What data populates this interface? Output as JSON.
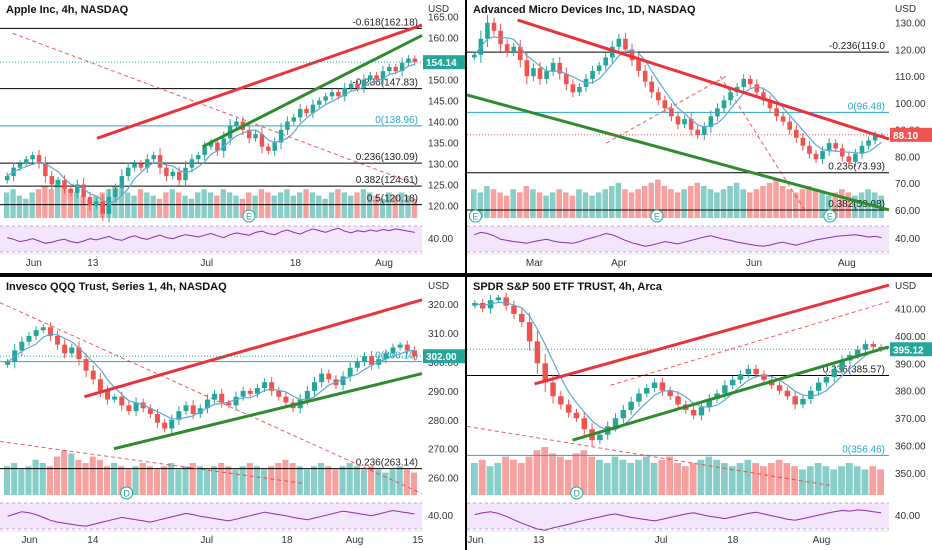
{
  "colors": {
    "candle_up": "#26a69a",
    "candle_down": "#ef5350",
    "resistance": "#e8323c",
    "support": "#2e8b2e",
    "fib_line": "#000000",
    "fib_zero": "#26a6c9",
    "dashed_trend": "#e8323c",
    "ma_line": "#5fa8d3",
    "rsi_band": "#f3e5fb",
    "rsi_line": "#8b2fa8",
    "price_tag": "#26a69a",
    "price_tag_red": "#ef5350"
  },
  "chart_data": [
    {
      "type": "candlestick",
      "title": "Apple Inc, 4h, NASDAQ",
      "currency": "USD",
      "ylim": [
        117,
        168
      ],
      "y_ticks": [
        "165.00",
        "160.00",
        "155.00",
        "150.00",
        "145.00",
        "140.00",
        "135.00",
        "130.00",
        "125.00",
        "120.00"
      ],
      "x_ticks": [
        "Jun",
        "13",
        "Jul",
        "18",
        "Aug"
      ],
      "x_tick_pos": [
        0.08,
        0.22,
        0.49,
        0.7,
        0.91
      ],
      "price_label": "154.14",
      "price_label_color": "#26a69a",
      "last_price": 154.14,
      "rsi_tick": "40.00",
      "fib_levels": [
        {
          "label": "-0.618(162.18)",
          "value": 162.18,
          "zero": false
        },
        {
          "label": "-0.236(147.83)",
          "value": 147.83,
          "zero": false
        },
        {
          "label": "0(138.96)",
          "value": 138.96,
          "zero": true
        },
        {
          "label": "0.236(130.09)",
          "value": 130.09,
          "zero": false
        },
        {
          "label": "0.382(124.61)",
          "value": 124.61,
          "zero": false
        },
        {
          "label": "0.5(120.18)",
          "value": 120.18,
          "zero": false
        }
      ],
      "resistance": {
        "x": [
          0.23,
          1.0
        ],
        "y": [
          136.0,
          163.0
        ]
      },
      "support": {
        "x": [
          0.48,
          1.0
        ],
        "y": [
          134.0,
          160.5
        ]
      },
      "dashed": [
        {
          "x": [
            0.03,
            1.0
          ],
          "y": [
            161.0,
            124.5
          ]
        }
      ],
      "markers": [
        {
          "label": "E",
          "x": 0.59
        }
      ],
      "closes": [
        127,
        129,
        130,
        131,
        132,
        130,
        127,
        125,
        126,
        124,
        123,
        125,
        122,
        120,
        121,
        118,
        122,
        124,
        127,
        129,
        130,
        129,
        131,
        132,
        129,
        127,
        128,
        126,
        129,
        131,
        132,
        134,
        135,
        133,
        136,
        139,
        140,
        138,
        136,
        137,
        134,
        133,
        135,
        138,
        140,
        141,
        143,
        142,
        144,
        145,
        146,
        147,
        146,
        148,
        149,
        148,
        150,
        151,
        150,
        152,
        153,
        152,
        154,
        155,
        154.14
      ],
      "volumes": [
        8,
        9,
        7,
        6,
        8,
        9,
        10,
        9,
        12,
        10,
        9,
        8,
        7,
        6,
        7,
        8,
        9,
        10,
        9,
        8,
        7,
        9,
        8,
        7,
        6,
        8,
        9,
        8,
        7,
        6,
        8,
        9,
        8,
        7,
        9,
        8,
        7,
        6,
        8,
        7,
        9,
        8,
        7,
        8,
        9,
        7,
        8,
        9,
        8,
        7,
        6,
        8,
        9,
        8,
        7,
        8,
        9,
        8,
        7,
        6,
        8,
        7,
        8,
        7,
        6
      ],
      "rsi": [
        55,
        52,
        48,
        50,
        53,
        49,
        45,
        47,
        50,
        52,
        48,
        46,
        49,
        53,
        51,
        54,
        57,
        52,
        50,
        55,
        58,
        54,
        52,
        56,
        59,
        55,
        53,
        57,
        60,
        58,
        56,
        59,
        62,
        58,
        55,
        60,
        63,
        61,
        59,
        64,
        66,
        62,
        60,
        65,
        68,
        64,
        61,
        66,
        70,
        67,
        64,
        68,
        71,
        66,
        63,
        67,
        65,
        68,
        66,
        69,
        67,
        70,
        68,
        66,
        64
      ]
    },
    {
      "type": "candlestick",
      "title": "Advanced Micro Devices Inc, 1D, NASDAQ",
      "currency": "USD",
      "ylim": [
        57,
        137
      ],
      "y_ticks": [
        "130.00",
        "120.00",
        "110.00",
        "100.00",
        "90.00",
        "80.00",
        "70.00",
        "60.00"
      ],
      "x_ticks": [
        "Mar",
        "Apr",
        "Jun",
        "Aug"
      ],
      "x_tick_pos": [
        0.16,
        0.36,
        0.68,
        0.9
      ],
      "price_label": "88.10",
      "price_label_color": "#ef5350",
      "last_price": 88.1,
      "rsi_tick": "40.00",
      "fib_levels": [
        {
          "label": "-0.236(119.0",
          "value": 119.0,
          "zero": false
        },
        {
          "label": "0(96.48)",
          "value": 96.48,
          "zero": true
        },
        {
          "label": "0.236(73.93)",
          "value": 73.93,
          "zero": false
        },
        {
          "label": "0.382(59.98)",
          "value": 59.98,
          "zero": false
        }
      ],
      "resistance": {
        "x": [
          0.12,
          1.0
        ],
        "y": [
          131.0,
          86.5
        ]
      },
      "support": {
        "x": [
          0.0,
          1.0
        ],
        "y": [
          103.0,
          60.0
        ]
      },
      "dashed": [
        {
          "x": [
            0.33,
            0.62
          ],
          "y": [
            85.0,
            110.5
          ]
        },
        {
          "x": [
            0.6,
            0.8
          ],
          "y": [
            110.0,
            60.0
          ]
        }
      ],
      "markers": [
        {
          "label": "E",
          "x": 0.02
        },
        {
          "label": "E",
          "x": 0.45
        },
        {
          "label": "E",
          "x": 0.86
        }
      ],
      "closes": [
        118,
        124,
        130,
        127,
        122,
        119,
        121,
        116,
        110,
        113,
        109,
        112,
        115,
        111,
        107,
        104,
        106,
        109,
        112,
        114,
        117,
        121,
        124,
        120,
        116,
        112,
        108,
        104,
        101,
        98,
        95,
        92,
        94,
        90,
        88,
        91,
        95,
        98,
        101,
        104,
        106,
        109,
        107,
        104,
        101,
        98,
        95,
        93,
        90,
        87,
        84,
        81,
        79,
        82,
        85,
        83,
        80,
        78,
        81,
        84,
        86,
        88,
        88.1
      ],
      "volumes": [
        9,
        8,
        10,
        9,
        8,
        7,
        9,
        8,
        10,
        9,
        8,
        7,
        8,
        9,
        8,
        7,
        9,
        8,
        7,
        8,
        9,
        10,
        11,
        9,
        8,
        9,
        10,
        11,
        12,
        10,
        9,
        8,
        9,
        10,
        11,
        10,
        9,
        8,
        9,
        10,
        11,
        9,
        8,
        9,
        10,
        11,
        12,
        10,
        9,
        8,
        9,
        10,
        9,
        8,
        7,
        8,
        9,
        8,
        7,
        8,
        9,
        8,
        7
      ],
      "rsi": [
        60,
        64,
        62,
        58,
        52,
        50,
        48,
        47,
        45,
        48,
        50,
        52,
        49,
        47,
        46,
        45,
        48,
        52,
        55,
        58,
        62,
        60,
        55,
        50,
        46,
        43,
        40,
        42,
        45,
        48,
        46,
        44,
        47,
        50,
        53,
        56,
        58,
        55,
        52,
        50,
        47,
        45,
        43,
        41,
        40,
        42,
        45,
        47,
        44,
        42,
        45,
        48,
        51,
        53,
        55,
        57,
        58,
        59,
        60,
        58,
        56,
        57,
        55
      ]
    },
    {
      "type": "candlestick",
      "title": "Invesco QQQ Trust, Series 1, 4h, NASDAQ",
      "currency": "USD",
      "ylim": [
        254,
        328
      ],
      "y_ticks": [
        "320.00",
        "310.00",
        "300.00",
        "290.00",
        "280.00",
        "270.00",
        "260.00"
      ],
      "x_ticks": [
        "Jun",
        "14",
        "Jul",
        "18",
        "Aug",
        "15"
      ],
      "x_tick_pos": [
        0.07,
        0.22,
        0.49,
        0.68,
        0.84,
        0.99
      ],
      "price_label": "302.00",
      "price_label_color": "#26a69a",
      "last_price": 302.0,
      "rsi_tick": "40.00",
      "fib_levels": [
        {
          "label": "0(300.10)",
          "value": 300.1,
          "zero": true
        },
        {
          "label": "0.236(263.14)",
          "value": 263.14,
          "zero": false
        }
      ],
      "resistance": {
        "x": [
          0.2,
          1.0
        ],
        "y": [
          288.0,
          321.5
        ]
      },
      "support": {
        "x": [
          0.27,
          1.0
        ],
        "y": [
          270.0,
          296.0
        ]
      },
      "dashed": [
        {
          "x": [
            0.0,
            1.0
          ],
          "y": [
            320.5,
            254.5
          ]
        },
        {
          "x": [
            0.0,
            0.72
          ],
          "y": [
            272.5,
            258.0
          ]
        }
      ],
      "markers": [
        {
          "label": "D",
          "x": 0.3
        }
      ],
      "closes": [
        300,
        304,
        307,
        309,
        311,
        312,
        309,
        306,
        303,
        305,
        301,
        297,
        294,
        290,
        287,
        288,
        285,
        283,
        286,
        284,
        282,
        279,
        277,
        280,
        283,
        285,
        282,
        284,
        287,
        289,
        286,
        285,
        288,
        290,
        289,
        291,
        293,
        290,
        288,
        286,
        284,
        287,
        290,
        293,
        296,
        294,
        292,
        295,
        298,
        300,
        302,
        299,
        301,
        303,
        305,
        306,
        304,
        302
      ],
      "volumes": [
        9,
        10,
        8,
        9,
        11,
        10,
        9,
        12,
        14,
        13,
        11,
        10,
        12,
        11,
        9,
        10,
        9,
        8,
        9,
        10,
        9,
        8,
        9,
        10,
        8,
        9,
        10,
        9,
        8,
        9,
        10,
        9,
        8,
        9,
        10,
        9,
        8,
        9,
        10,
        11,
        10,
        9,
        8,
        9,
        10,
        9,
        8,
        9,
        10,
        9,
        8,
        9,
        8,
        7,
        8,
        9,
        8,
        7
      ],
      "rsi": [
        52,
        56,
        60,
        58,
        55,
        50,
        45,
        42,
        40,
        38,
        36,
        35,
        38,
        41,
        44,
        47,
        50,
        48,
        46,
        44,
        42,
        45,
        48,
        51,
        54,
        57,
        55,
        52,
        50,
        48,
        46,
        44,
        47,
        50,
        53,
        56,
        59,
        57,
        55,
        53,
        50,
        48,
        46,
        49,
        52,
        55,
        58,
        61,
        59,
        57,
        55,
        53,
        56,
        59,
        62,
        60,
        58,
        56
      ]
    },
    {
      "type": "candlestick",
      "title": "SPDR S&P 500 ETF TRUST, 4h, Arca",
      "currency": "USD",
      "ylim": [
        342,
        420
      ],
      "y_ticks": [
        "410.00",
        "400.00",
        "390.00",
        "380.00",
        "370.00",
        "360.00",
        "350.00"
      ],
      "x_ticks": [
        "Jun",
        "13",
        "Jul",
        "18",
        "Aug"
      ],
      "x_tick_pos": [
        0.02,
        0.17,
        0.46,
        0.63,
        0.84
      ],
      "price_label": "395.12",
      "price_label_color": "#26a69a",
      "last_price": 395.12,
      "rsi_tick": "40.00",
      "fib_levels": [
        {
          "label": "0.236(385.57)",
          "value": 385.57,
          "zero": false
        },
        {
          "label": "0(356.46)",
          "value": 356.46,
          "zero": true
        }
      ],
      "resistance": {
        "x": [
          0.16,
          1.0
        ],
        "y": [
          382.5,
          418.5
        ]
      },
      "support": {
        "x": [
          0.25,
          1.0
        ],
        "y": [
          362.0,
          396.0
        ]
      },
      "dashed": [
        {
          "x": [
            0.34,
            1.0
          ],
          "y": [
            382.0,
            412.5
          ]
        },
        {
          "x": [
            0.0,
            0.86
          ],
          "y": [
            367.0,
            345.5
          ]
        }
      ],
      "markers": [
        {
          "label": "D",
          "x": 0.26
        }
      ],
      "closes": [
        412,
        410,
        413,
        414,
        411,
        408,
        405,
        398,
        390,
        383,
        378,
        375,
        372,
        370,
        366,
        362,
        364,
        367,
        370,
        373,
        376,
        379,
        381,
        383,
        380,
        378,
        375,
        373,
        371,
        374,
        377,
        379,
        382,
        384,
        386,
        388,
        386,
        384,
        382,
        380,
        378,
        375,
        377,
        380,
        383,
        385,
        388,
        391,
        393,
        395,
        397,
        396,
        395.12
      ],
      "volumes": [
        10,
        11,
        9,
        10,
        12,
        11,
        10,
        12,
        14,
        15,
        13,
        12,
        11,
        13,
        14,
        12,
        11,
        10,
        12,
        11,
        10,
        11,
        12,
        10,
        11,
        12,
        10,
        9,
        10,
        11,
        12,
        11,
        10,
        9,
        10,
        11,
        10,
        9,
        10,
        11,
        10,
        9,
        8,
        9,
        10,
        9,
        8,
        9,
        10,
        9,
        8,
        9,
        8
      ],
      "rsi": [
        55,
        58,
        60,
        57,
        52,
        46,
        40,
        35,
        30,
        28,
        32,
        35,
        38,
        42,
        45,
        48,
        51,
        54,
        56,
        53,
        50,
        48,
        46,
        44,
        47,
        50,
        53,
        56,
        58,
        55,
        52,
        50,
        48,
        51,
        54,
        57,
        59,
        56,
        53,
        50,
        47,
        45,
        48,
        51,
        54,
        57,
        60,
        62,
        61,
        63,
        62,
        60,
        58
      ]
    }
  ]
}
